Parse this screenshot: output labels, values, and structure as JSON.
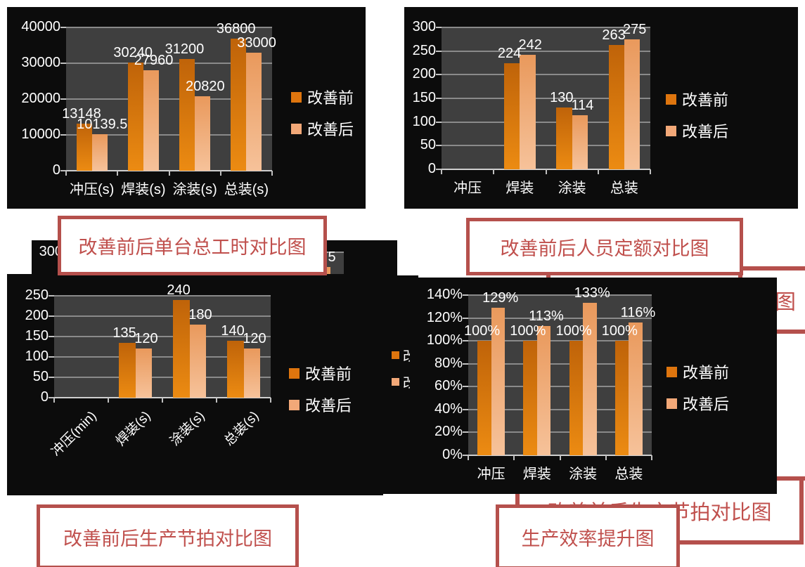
{
  "slide": {
    "background": "#ffffff",
    "accent_red": "#c0504d",
    "chart_background": "#0c0c0c",
    "plot_background": "#3f3f3f"
  },
  "legend": {
    "before": "改善前",
    "after": "改善后"
  },
  "bar_colors": {
    "before": "#de750e",
    "after": "#f2a878"
  },
  "title_boxes": {
    "worktime": "改善前后单台总工时对比图",
    "staff_quota": "改善前后人员定额对比图",
    "takt": "改善前后生产节拍对比图",
    "takt_hidden": "改善前后生产节拍对比图",
    "efficiency": "生产效率提升图",
    "partial_right": "图"
  },
  "chart_data": [
    {
      "id": "worktime",
      "type": "bar",
      "title": "改善前后单台总工时对比图",
      "categories": [
        "冲压(s)",
        "焊装(s)",
        "涂装(s)",
        "总装(s)"
      ],
      "ylim": [
        0,
        40000
      ],
      "yticks": [
        "40000",
        "30000",
        "20000",
        "10000",
        "0"
      ],
      "grid": true,
      "legend_position": "right",
      "series": [
        {
          "name": "改善前",
          "values": [
            13148,
            30240,
            31200,
            36800
          ],
          "labels": [
            "13148",
            "30240",
            "31200",
            "36800"
          ]
        },
        {
          "name": "改善后",
          "values": [
            10139.5,
            27960,
            20820,
            33000
          ],
          "labels": [
            "10139.5",
            "27960",
            "20820",
            "33000"
          ]
        }
      ]
    },
    {
      "id": "staff-quota",
      "type": "bar",
      "title": "改善前后人员定额对比图",
      "categories": [
        "冲压",
        "焊装",
        "涂装",
        "总装"
      ],
      "ylim": [
        0,
        300
      ],
      "yticks": [
        "300",
        "250",
        "200",
        "150",
        "100",
        "50",
        "0"
      ],
      "grid": true,
      "legend_position": "right",
      "series": [
        {
          "name": "改善前",
          "values": [
            null,
            224,
            130,
            263
          ],
          "labels": [
            "",
            "224",
            "130",
            "263"
          ]
        },
        {
          "name": "改善后",
          "values": [
            null,
            242,
            114,
            275
          ],
          "labels": [
            "",
            "242",
            "114",
            "275"
          ]
        }
      ]
    },
    {
      "id": "takt",
      "type": "bar",
      "title": "改善前后生产节拍对比图",
      "categories": [
        "冲压(min)",
        "焊装(s)",
        "涂装(s)",
        "总装(s)"
      ],
      "category_labels_rotated": true,
      "ylim": [
        0,
        250
      ],
      "yticks": [
        "250",
        "200",
        "150",
        "100",
        "50",
        "0"
      ],
      "grid": true,
      "legend_position": "right",
      "series": [
        {
          "name": "改善前",
          "values": [
            null,
            135,
            240,
            140
          ],
          "labels": [
            "",
            "135",
            "240",
            "140"
          ]
        },
        {
          "name": "改善后",
          "values": [
            null,
            120,
            180,
            120
          ],
          "labels": [
            "",
            "120",
            "180",
            "120"
          ]
        }
      ]
    },
    {
      "id": "efficiency",
      "type": "bar",
      "title": "生产效率提升图",
      "categories": [
        "冲压",
        "焊装",
        "涂装",
        "总装"
      ],
      "ylim": [
        0,
        140
      ],
      "yticks": [
        "140%",
        "120%",
        "100%",
        "80%",
        "60%",
        "40%",
        "20%",
        "0%"
      ],
      "grid": true,
      "legend_position": "right",
      "series": [
        {
          "name": "改善前",
          "values": [
            100,
            100,
            100,
            100
          ],
          "labels": [
            "100%",
            "100%",
            "100%",
            "100%"
          ]
        },
        {
          "name": "改善后",
          "values": [
            129,
            113,
            133,
            116
          ],
          "labels": [
            "129%",
            "113%",
            "133%",
            "116%"
          ]
        }
      ]
    },
    {
      "id": "staff-quota-hidden",
      "type": "bar",
      "title": "改善前后人员定额对比图",
      "categories": [
        "冲压",
        "焊装",
        "涂装",
        "总装"
      ],
      "ylim": [
        0,
        300
      ],
      "yticks": [
        "300",
        "250",
        "200",
        "150",
        "100",
        "50",
        "0"
      ],
      "grid": true,
      "legend_position": "right",
      "series": [
        {
          "name": "改善前",
          "values": [
            null,
            224,
            130,
            263
          ],
          "labels": [
            "",
            "224",
            "130",
            "263"
          ]
        },
        {
          "name": "改善后",
          "values": [
            null,
            242,
            114,
            275
          ],
          "labels": [
            "",
            "242",
            "114",
            "275"
          ]
        }
      ]
    }
  ]
}
